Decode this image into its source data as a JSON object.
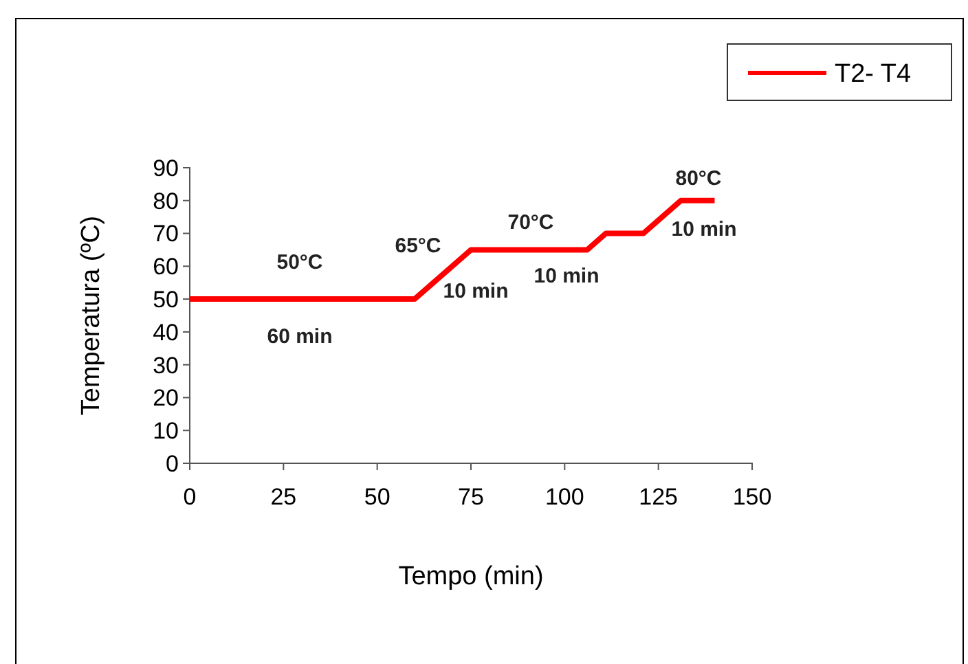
{
  "chart_data": {
    "type": "line",
    "xlabel": "Tempo (min)",
    "ylabel": "Temperatura (ºC)",
    "x": [
      0,
      60,
      75,
      106,
      111,
      121,
      131,
      140
    ],
    "series": [
      {
        "name": "T2- T4",
        "color": "#ff0000",
        "values": [
          50,
          50,
          65,
          65,
          70,
          70,
          80,
          80
        ]
      }
    ],
    "xlim": [
      0,
      150
    ],
    "xticks": [
      0,
      25,
      50,
      75,
      100,
      125,
      150
    ],
    "ylim": [
      0,
      90
    ],
    "yticks": [
      0,
      10,
      20,
      30,
      40,
      50,
      60,
      70,
      80,
      90
    ],
    "grid": false,
    "legend": "top right",
    "marker": "none",
    "line_style": "solid",
    "annotations": [
      "50°C",
      "60 min",
      "65°C",
      "10 min",
      "70°C",
      "10 min",
      "80°C",
      "10 min"
    ]
  }
}
